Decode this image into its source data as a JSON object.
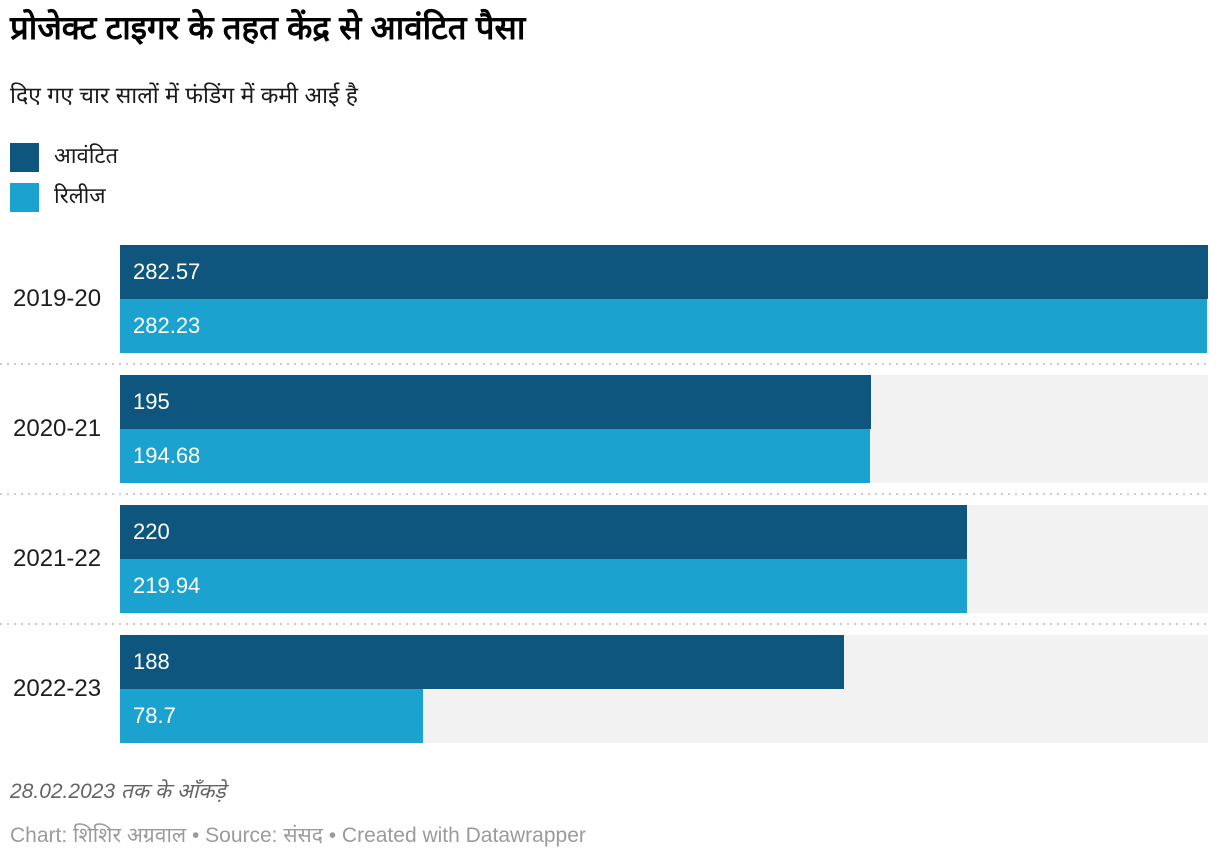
{
  "chart_data": {
    "type": "bar",
    "orientation": "horizontal",
    "title": "प्रोजेक्ट टाइगर के तहत केंद्र से आवंटित पैसा",
    "subtitle": "दिए गए चार सालों में फंडिंग में कमी आई है",
    "categories": [
      "2019-20",
      "2020-21",
      "2021-22",
      "2022-23"
    ],
    "series": [
      {
        "name": "आवंटित",
        "color": "#0e567e",
        "values": [
          282.57,
          195,
          220,
          188
        ],
        "labels": [
          "282.57",
          "195",
          "220",
          "188"
        ]
      },
      {
        "name": "रिलीज",
        "color": "#1ba2cf",
        "values": [
          282.23,
          194.68,
          219.94,
          78.7
        ],
        "labels": [
          "282.23",
          "194.68",
          "219.94",
          "78.7"
        ]
      }
    ],
    "xlim": [
      0,
      282.57
    ],
    "grid": false,
    "legend_position": "top-left",
    "track_color": "#f2f2f2",
    "separator_color": "#cbcbcb"
  },
  "footer": {
    "note": "28.02.2023 तक के आँकड़े",
    "byline": "Chart: शिशिर अग्रवाल • Source: संसद • Created with Datawrapper"
  }
}
